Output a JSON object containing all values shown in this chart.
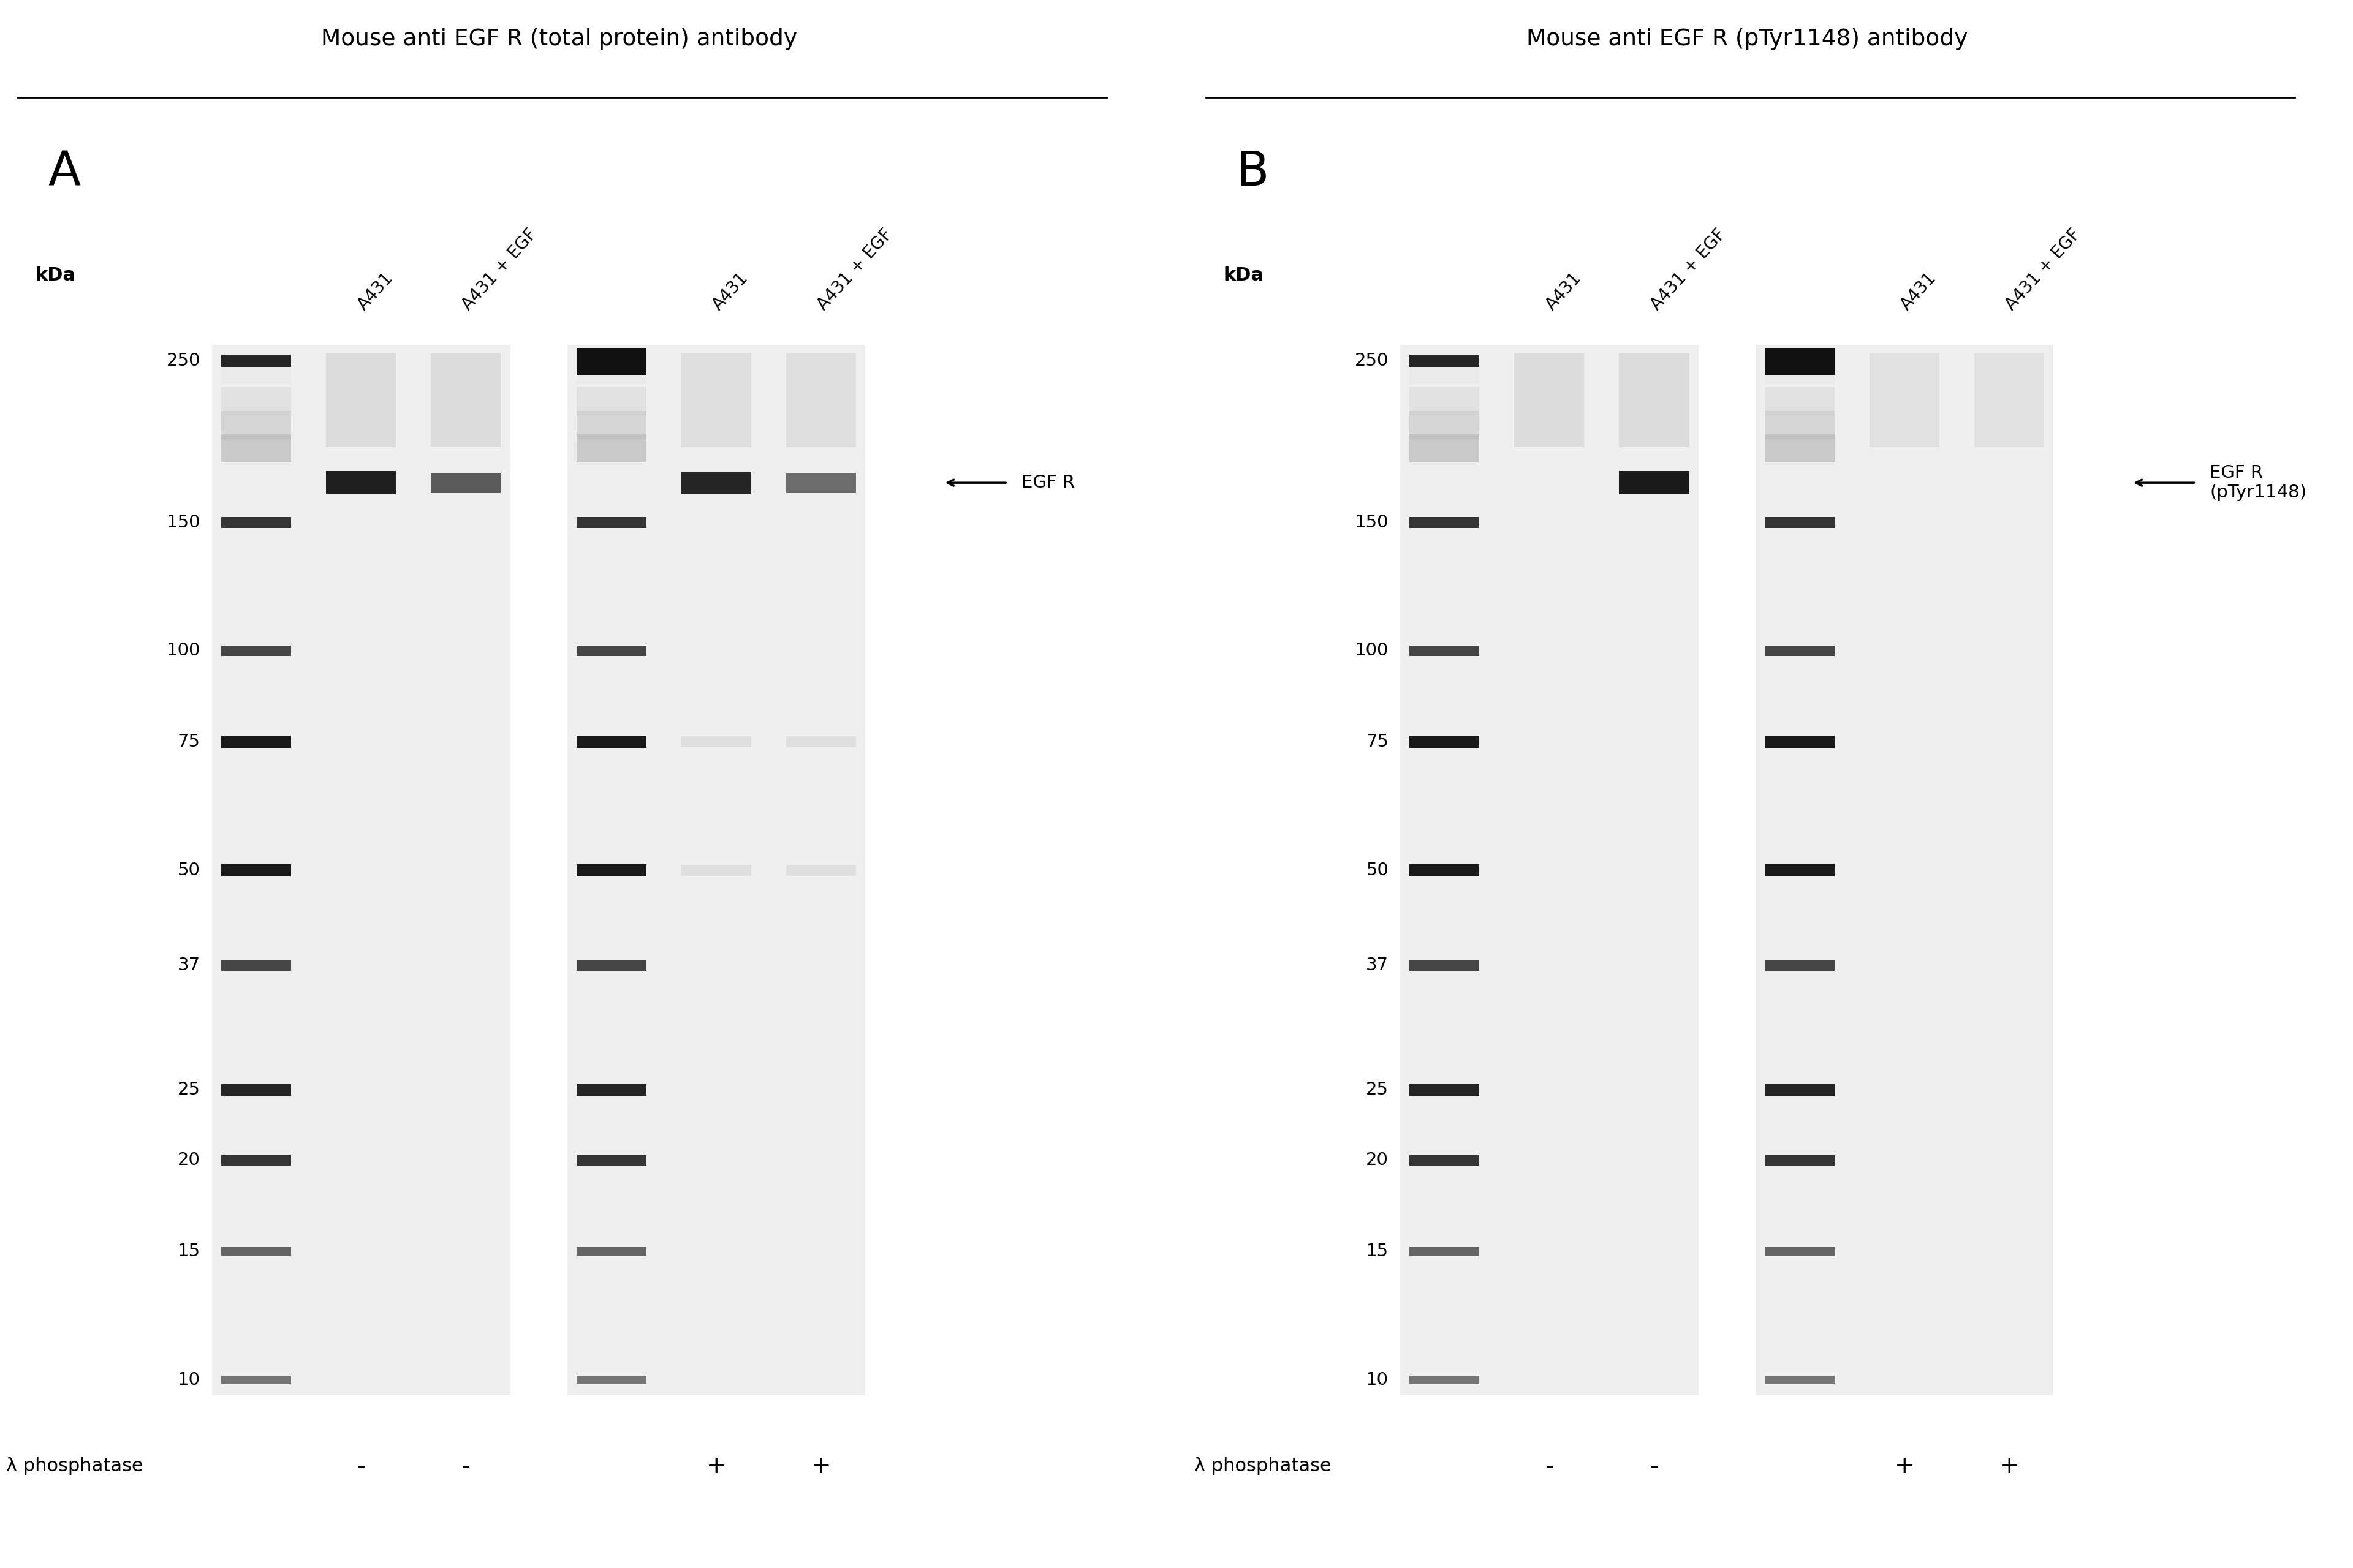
{
  "fig_width": 38.4,
  "fig_height": 25.6,
  "bg_color": "#ffffff",
  "panel_A_title": "Mouse anti EGF R (total protein) antibody",
  "panel_B_title": "Mouse anti EGF R (pTyr1148) antibody",
  "panel_label_A": "A",
  "panel_label_B": "B",
  "kda_label": "kDa",
  "mw_markers": [
    250,
    150,
    100,
    75,
    50,
    37,
    25,
    20,
    15,
    10
  ],
  "lane_labels_A": [
    "A431",
    "A431 + EGF",
    "A431",
    "A431 + EGF"
  ],
  "lane_labels_B": [
    "A431",
    "A431 + EGF",
    "A431",
    "A431 + EGF"
  ],
  "phosphatase_label": "λ phosphatase",
  "phosphatase_signs_A": [
    "-",
    "-",
    "+",
    "+"
  ],
  "phosphatase_signs_B": [
    "-",
    "-",
    "+",
    "+"
  ],
  "egfr_label_A": "EGF R",
  "egfr_label_B": "EGF R\n(pTyr1148)",
  "egfr_mw": 170,
  "gel_bg": "#efefef",
  "gel_bg_light": "#f5f5f5",
  "marker_band_colors": {
    "250": "#252525",
    "150": "#353535",
    "100": "#454545",
    "75": "#1a1a1a",
    "50": "#1a1a1a",
    "37": "#454545",
    "25": "#252525",
    "20": "#353535",
    "15": "#656565",
    "10": "#757575"
  },
  "marker_band_heights": {
    "250": 0.08,
    "150": 0.07,
    "100": 0.065,
    "75": 0.08,
    "50": 0.08,
    "37": 0.065,
    "25": 0.075,
    "20": 0.065,
    "15": 0.055,
    "10": 0.05
  }
}
